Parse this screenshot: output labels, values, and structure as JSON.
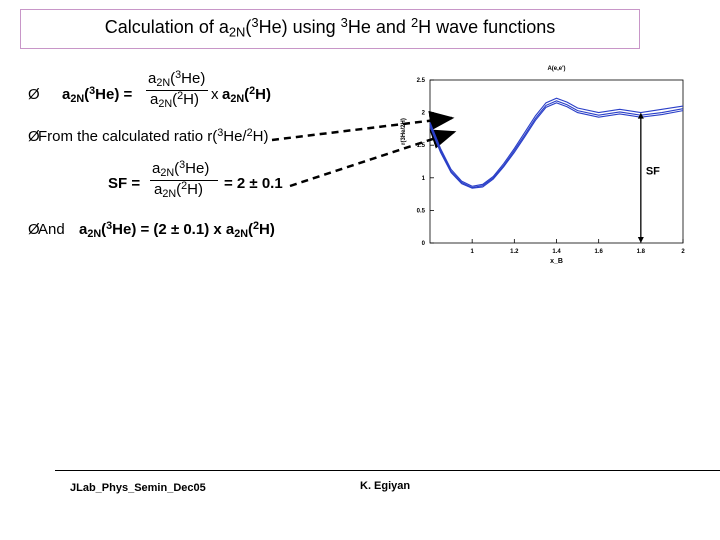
{
  "title": {
    "part1": "Calculation of a",
    "sub1": "2N",
    "part2": "(",
    "sup1": "3",
    "part3": "He) using ",
    "sup2": "3",
    "part4": "He and ",
    "sup3": "2",
    "part5": "H wave functions"
  },
  "bullets": {
    "symbol": "Ø",
    "b1": {
      "lhs_a": "a",
      "lhs_sub": "2N",
      "lhs_open": "(",
      "lhs_sup": "3",
      "lhs_close": "He) =",
      "num_a": "a",
      "num_sub": "2N",
      "num_open": "(",
      "num_sup": "3",
      "num_close": "He)",
      "den_a": "a",
      "den_sub": "2N",
      "den_open": "(",
      "den_sup": "2",
      "den_close": "H)",
      "times": "x",
      "rhs_a": "a",
      "rhs_sub": "2N",
      "rhs_open": "(",
      "rhs_sup": "2",
      "rhs_close": "H)"
    },
    "b2": {
      "text1": "From the calculated ratio r(",
      "sup1": "3",
      "text2": "He/",
      "sup2": "2",
      "text3": "H)"
    },
    "sf": {
      "lhs": "SF =",
      "num_a": "a",
      "num_sub": "2N",
      "num_open": "(",
      "num_sup": "3",
      "num_close": "He)",
      "den_a": "a",
      "den_sub": "2N",
      "den_open": "(",
      "den_sup": "2",
      "den_close": "H)",
      "rhs": "= 2 ± 0.1"
    },
    "b3": {
      "and": "And",
      "a": "a",
      "sub": "2N",
      "open": "(",
      "sup": "3",
      "mid": "He) = (2 ± 0.1) x a",
      "sub2": "2N",
      "open2": "(",
      "sup2": "2",
      "close2": "H)"
    }
  },
  "footer": {
    "left": "JLab_Phys_Semin_Dec05",
    "right": "K. Egiyan"
  },
  "colors": {
    "curve": "#2a3fc8",
    "arrow": "#000000",
    "title_border": "#c896c8"
  },
  "chart_data": {
    "type": "line",
    "title": "A(e,e')",
    "xlabel": "x_B",
    "ylabel": "r(3He/2H)",
    "xlim": [
      0.8,
      2.0
    ],
    "ylim": [
      0,
      2.5
    ],
    "x_ticks": [
      "1",
      "1.2",
      "1.4",
      "1.6",
      "1.8",
      "2"
    ],
    "y_ticks": [
      "0",
      "0.5",
      "1",
      "1.5",
      "2",
      "2.5"
    ],
    "annotation": "SF",
    "series": [
      {
        "x": [
          0.8,
          0.85,
          0.9,
          0.95,
          1.0,
          1.05,
          1.1,
          1.15,
          1.2,
          1.25,
          1.3,
          1.35,
          1.4,
          1.45,
          1.5,
          1.6,
          1.7,
          1.8,
          1.9,
          2.0
        ],
        "y": [
          1.85,
          1.45,
          1.13,
          0.95,
          0.87,
          0.9,
          1.02,
          1.22,
          1.45,
          1.7,
          1.95,
          2.15,
          2.22,
          2.16,
          2.07,
          2.0,
          2.05,
          2.0,
          2.05,
          2.1
        ]
      },
      {
        "x": [
          0.8,
          0.85,
          0.9,
          0.95,
          1.0,
          1.05,
          1.1,
          1.15,
          1.2,
          1.25,
          1.3,
          1.35,
          1.4,
          1.45,
          1.5,
          1.6,
          1.7,
          1.8,
          1.9,
          2.0
        ],
        "y": [
          1.82,
          1.42,
          1.1,
          0.93,
          0.85,
          0.88,
          1.0,
          1.19,
          1.42,
          1.66,
          1.91,
          2.11,
          2.18,
          2.12,
          2.03,
          1.96,
          2.01,
          1.96,
          2.0,
          2.06
        ]
      },
      {
        "x": [
          0.8,
          0.85,
          0.9,
          0.95,
          1.0,
          1.05,
          1.1,
          1.15,
          1.2,
          1.25,
          1.3,
          1.35,
          1.4,
          1.45,
          1.5,
          1.6,
          1.7,
          1.8,
          1.9,
          2.0
        ],
        "y": [
          1.79,
          1.39,
          1.08,
          0.91,
          0.84,
          0.86,
          0.98,
          1.17,
          1.39,
          1.63,
          1.88,
          2.08,
          2.15,
          2.09,
          2.0,
          1.93,
          1.98,
          1.93,
          1.97,
          2.03
        ]
      }
    ]
  }
}
